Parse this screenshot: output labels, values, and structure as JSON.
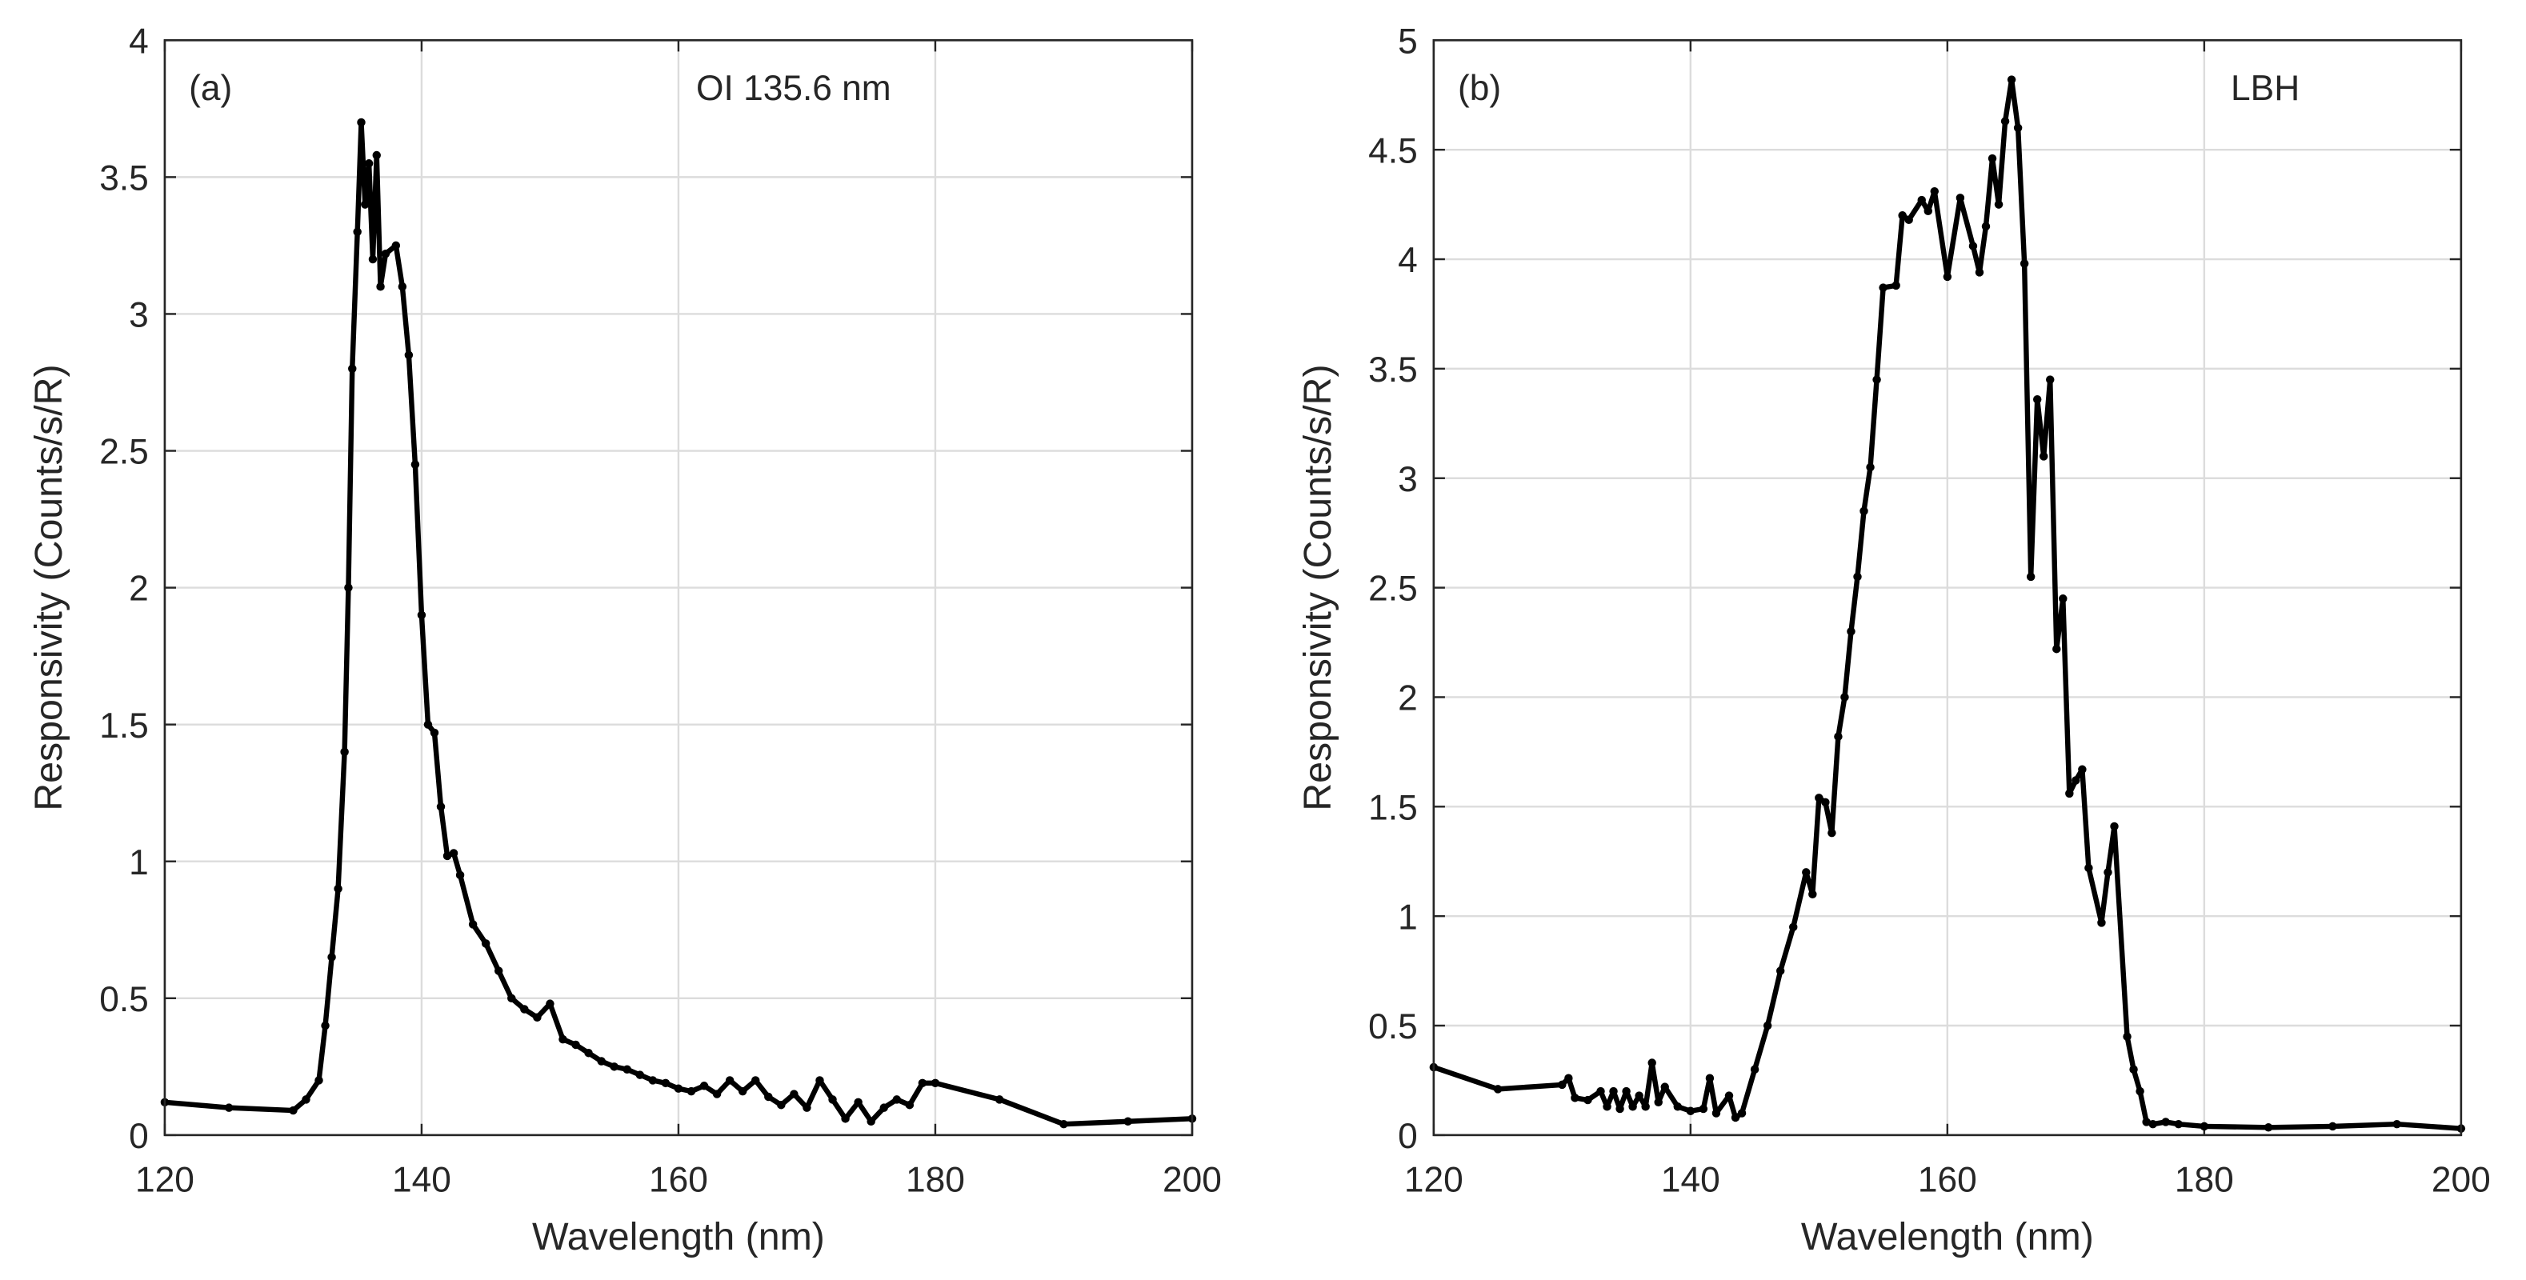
{
  "chart_data": [
    {
      "type": "line",
      "panel_label": "(a)",
      "annotation": "OI 135.6 nm",
      "xlabel": "Wavelength (nm)",
      "ylabel": "Responsivity (Counts/s/R)",
      "xlim": [
        120,
        200
      ],
      "xticks": [
        120,
        140,
        160,
        180,
        200
      ],
      "ylim": [
        0,
        4
      ],
      "yticks": [
        0,
        0.5,
        1,
        1.5,
        2,
        2.5,
        3,
        3.5,
        4
      ],
      "grid": true,
      "series": [
        {
          "color": "#000000",
          "x": [
            120,
            125,
            130,
            131,
            132,
            132.5,
            133,
            133.5,
            134,
            134.3,
            134.6,
            135,
            135.3,
            135.6,
            135.9,
            136.2,
            136.5,
            136.8,
            137.2,
            138,
            138.5,
            139,
            139.5,
            140,
            140.5,
            141,
            141.5,
            142,
            142.5,
            143,
            144,
            145,
            146,
            147,
            148,
            149,
            150,
            151,
            152,
            153,
            154,
            155,
            156,
            157,
            158,
            159,
            160,
            161,
            162,
            163,
            164,
            165,
            166,
            167,
            168,
            169,
            170,
            171,
            172,
            173,
            174,
            175,
            176,
            177,
            178,
            179,
            180,
            185,
            190,
            195,
            200
          ],
          "values": [
            0.12,
            0.1,
            0.09,
            0.13,
            0.2,
            0.4,
            0.65,
            0.9,
            1.4,
            2.0,
            2.8,
            3.3,
            3.7,
            3.4,
            3.55,
            3.2,
            3.58,
            3.1,
            3.22,
            3.25,
            3.1,
            2.85,
            2.45,
            1.9,
            1.5,
            1.47,
            1.2,
            1.02,
            1.03,
            0.95,
            0.77,
            0.7,
            0.6,
            0.5,
            0.46,
            0.43,
            0.48,
            0.35,
            0.33,
            0.3,
            0.27,
            0.25,
            0.24,
            0.22,
            0.2,
            0.19,
            0.17,
            0.16,
            0.18,
            0.15,
            0.2,
            0.16,
            0.2,
            0.14,
            0.11,
            0.15,
            0.1,
            0.2,
            0.13,
            0.06,
            0.12,
            0.05,
            0.1,
            0.13,
            0.11,
            0.19,
            0.19,
            0.13,
            0.04,
            0.05,
            0.06
          ]
        }
      ]
    },
    {
      "type": "line",
      "panel_label": "(b)",
      "annotation": "LBH",
      "xlabel": "Wavelength (nm)",
      "ylabel": "Responsivity (Counts/s/R)",
      "xlim": [
        120,
        200
      ],
      "xticks": [
        120,
        140,
        160,
        180,
        200
      ],
      "ylim": [
        0,
        5
      ],
      "yticks": [
        0,
        0.5,
        1,
        1.5,
        2,
        2.5,
        3,
        3.5,
        4,
        4.5,
        5
      ],
      "grid": true,
      "series": [
        {
          "color": "#000000",
          "x": [
            120,
            125,
            130,
            130.5,
            131,
            132,
            133,
            133.5,
            134,
            134.5,
            135,
            135.5,
            136,
            136.5,
            137,
            137.5,
            138,
            139,
            140,
            141,
            141.5,
            142,
            143,
            143.5,
            144,
            145,
            146,
            147,
            148,
            149,
            149.5,
            150,
            150.5,
            151,
            151.5,
            152,
            152.5,
            153,
            153.5,
            154,
            154.5,
            155,
            156,
            156.5,
            157,
            158,
            158.5,
            159,
            160,
            161,
            162,
            162.5,
            163,
            163.5,
            164,
            164.5,
            165,
            165.5,
            166,
            166.5,
            167,
            167.5,
            168,
            168.5,
            169,
            169.5,
            170,
            170.5,
            171,
            172,
            172.5,
            173,
            174,
            174.5,
            175,
            175.5,
            176,
            177,
            178,
            180,
            185,
            190,
            195,
            200
          ],
          "values": [
            0.31,
            0.21,
            0.23,
            0.26,
            0.17,
            0.16,
            0.2,
            0.13,
            0.2,
            0.12,
            0.2,
            0.13,
            0.18,
            0.13,
            0.33,
            0.15,
            0.22,
            0.13,
            0.11,
            0.12,
            0.26,
            0.1,
            0.18,
            0.08,
            0.1,
            0.3,
            0.5,
            0.75,
            0.95,
            1.2,
            1.1,
            1.54,
            1.52,
            1.38,
            1.82,
            2.0,
            2.3,
            2.55,
            2.85,
            3.05,
            3.45,
            3.87,
            3.88,
            4.2,
            4.18,
            4.27,
            4.22,
            4.31,
            3.92,
            4.28,
            4.06,
            3.94,
            4.15,
            4.46,
            4.25,
            4.63,
            4.82,
            4.6,
            3.98,
            2.55,
            3.36,
            3.1,
            3.45,
            2.22,
            2.45,
            1.56,
            1.62,
            1.67,
            1.22,
            0.97,
            1.2,
            1.41,
            0.45,
            0.3,
            0.2,
            0.06,
            0.05,
            0.06,
            0.05,
            0.04,
            0.035,
            0.04,
            0.05,
            0.03
          ]
        }
      ]
    }
  ]
}
